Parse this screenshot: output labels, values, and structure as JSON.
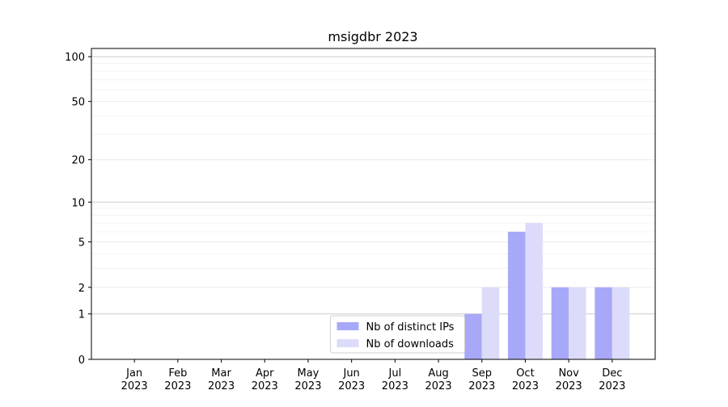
{
  "chart_data": {
    "type": "bar",
    "title": "msigdbr 2023",
    "categories": [
      "Jan 2023",
      "Feb 2023",
      "Mar 2023",
      "Apr 2023",
      "May 2023",
      "Jun 2023",
      "Jul 2023",
      "Aug 2023",
      "Sep 2023",
      "Oct 2023",
      "Nov 2023",
      "Dec 2023"
    ],
    "series": [
      {
        "name": "Nb of distinct IPs",
        "color": "#a8a8f8",
        "values": [
          0,
          0,
          0,
          0,
          0,
          0,
          0,
          0,
          1,
          6,
          2,
          2
        ]
      },
      {
        "name": "Nb of downloads",
        "color": "#dcdcfa",
        "values": [
          0,
          0,
          0,
          0,
          0,
          0,
          0,
          0,
          2,
          7,
          2,
          2
        ]
      }
    ],
    "yscale": "log1p",
    "ylim": [
      0,
      113.5
    ],
    "yticks": [
      0,
      1,
      2,
      5,
      10,
      20,
      50,
      100
    ],
    "yminorticks": [
      3,
      4,
      6,
      7,
      8,
      9,
      30,
      40,
      60,
      70,
      80,
      90
    ],
    "grid": true,
    "legend": "lower center"
  }
}
